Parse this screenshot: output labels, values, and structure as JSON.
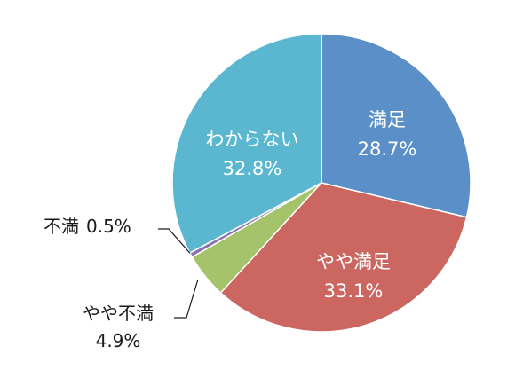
{
  "chart_data": {
    "type": "pie",
    "start_angle_deg": 0,
    "direction": "clockwise",
    "slices": [
      {
        "name": "満足",
        "value": 28.7,
        "value_label": "28.7%",
        "color": "#5B8FC7",
        "label_position": "inside"
      },
      {
        "name": "やや満足",
        "value": 33.1,
        "value_label": "33.1%",
        "color": "#CB6660",
        "label_position": "inside"
      },
      {
        "name": "やや不満",
        "value": 4.9,
        "value_label": "4.9%",
        "color": "#A4C36A",
        "label_position": "outside"
      },
      {
        "name": "不満",
        "value": 0.5,
        "value_label": "0.5%",
        "color": "#8A73B0",
        "label_position": "outside"
      },
      {
        "name": "わからない",
        "value": 32.8,
        "value_label": "32.8%",
        "color": "#5BB7CF",
        "label_position": "inside"
      }
    ]
  }
}
